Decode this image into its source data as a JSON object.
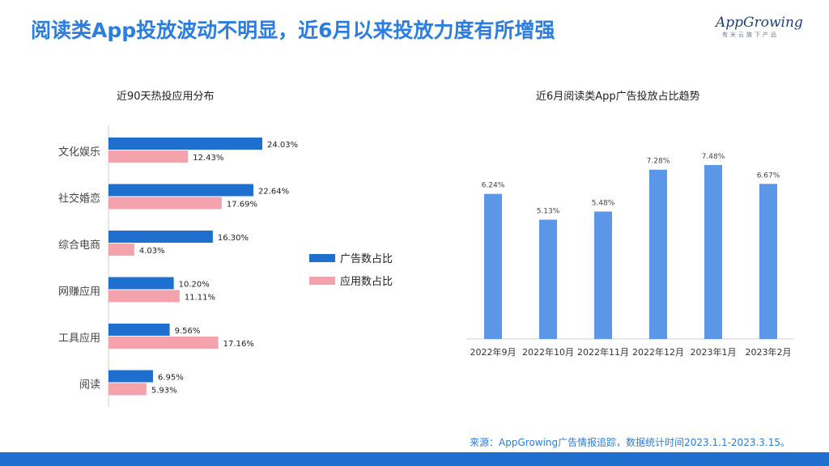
{
  "header": {
    "title": "阅读类App投放波动不明显，近6月以来投放力度有所增强",
    "logo_text": "AppGrowing",
    "logo_tagline": "有米云旗下产品"
  },
  "footer": {
    "source": "来源：AppGrowing广告情报追踪，数据统计时间2023.1.1-2023.3.15。"
  },
  "colors": {
    "title": "#2a7de1",
    "ad_series": "#1f6fcf",
    "app_series": "#f4a3ad",
    "trend_bar": "#5b97e6"
  },
  "chart_data": [
    {
      "type": "bar",
      "orientation": "horizontal",
      "title": "近90天热投应用分布",
      "categories": [
        "文化娱乐",
        "社交婚恋",
        "综合电商",
        "网赚应用",
        "工具应用",
        "阅读"
      ],
      "series": [
        {
          "name": "广告数占比",
          "values": [
            24.03,
            22.64,
            16.3,
            10.2,
            9.56,
            6.95
          ],
          "labels": [
            "24.03%",
            "22.64%",
            "16.30%",
            "10.20%",
            "9.56%",
            "6.95%"
          ]
        },
        {
          "name": "应用数占比",
          "values": [
            12.43,
            17.69,
            4.03,
            11.11,
            17.16,
            5.93
          ],
          "labels": [
            "12.43%",
            "17.69%",
            "4.03%",
            "11.11%",
            "17.16%",
            "5.93%"
          ]
        }
      ],
      "xlim": [
        0,
        30
      ],
      "legend": "right",
      "grid": false
    },
    {
      "type": "bar",
      "title": "近6月阅读类App广告投放占比趋势",
      "categories": [
        "2022年9月",
        "2022年10月",
        "2022年11月",
        "2022年12月",
        "2023年1月",
        "2023年2月"
      ],
      "values": [
        6.24,
        5.13,
        5.48,
        7.28,
        7.48,
        6.67
      ],
      "labels": [
        "6.24%",
        "5.13%",
        "5.48%",
        "7.28%",
        "7.48%",
        "6.67%"
      ],
      "ylim": [
        0,
        8.1
      ],
      "grid": false
    }
  ]
}
